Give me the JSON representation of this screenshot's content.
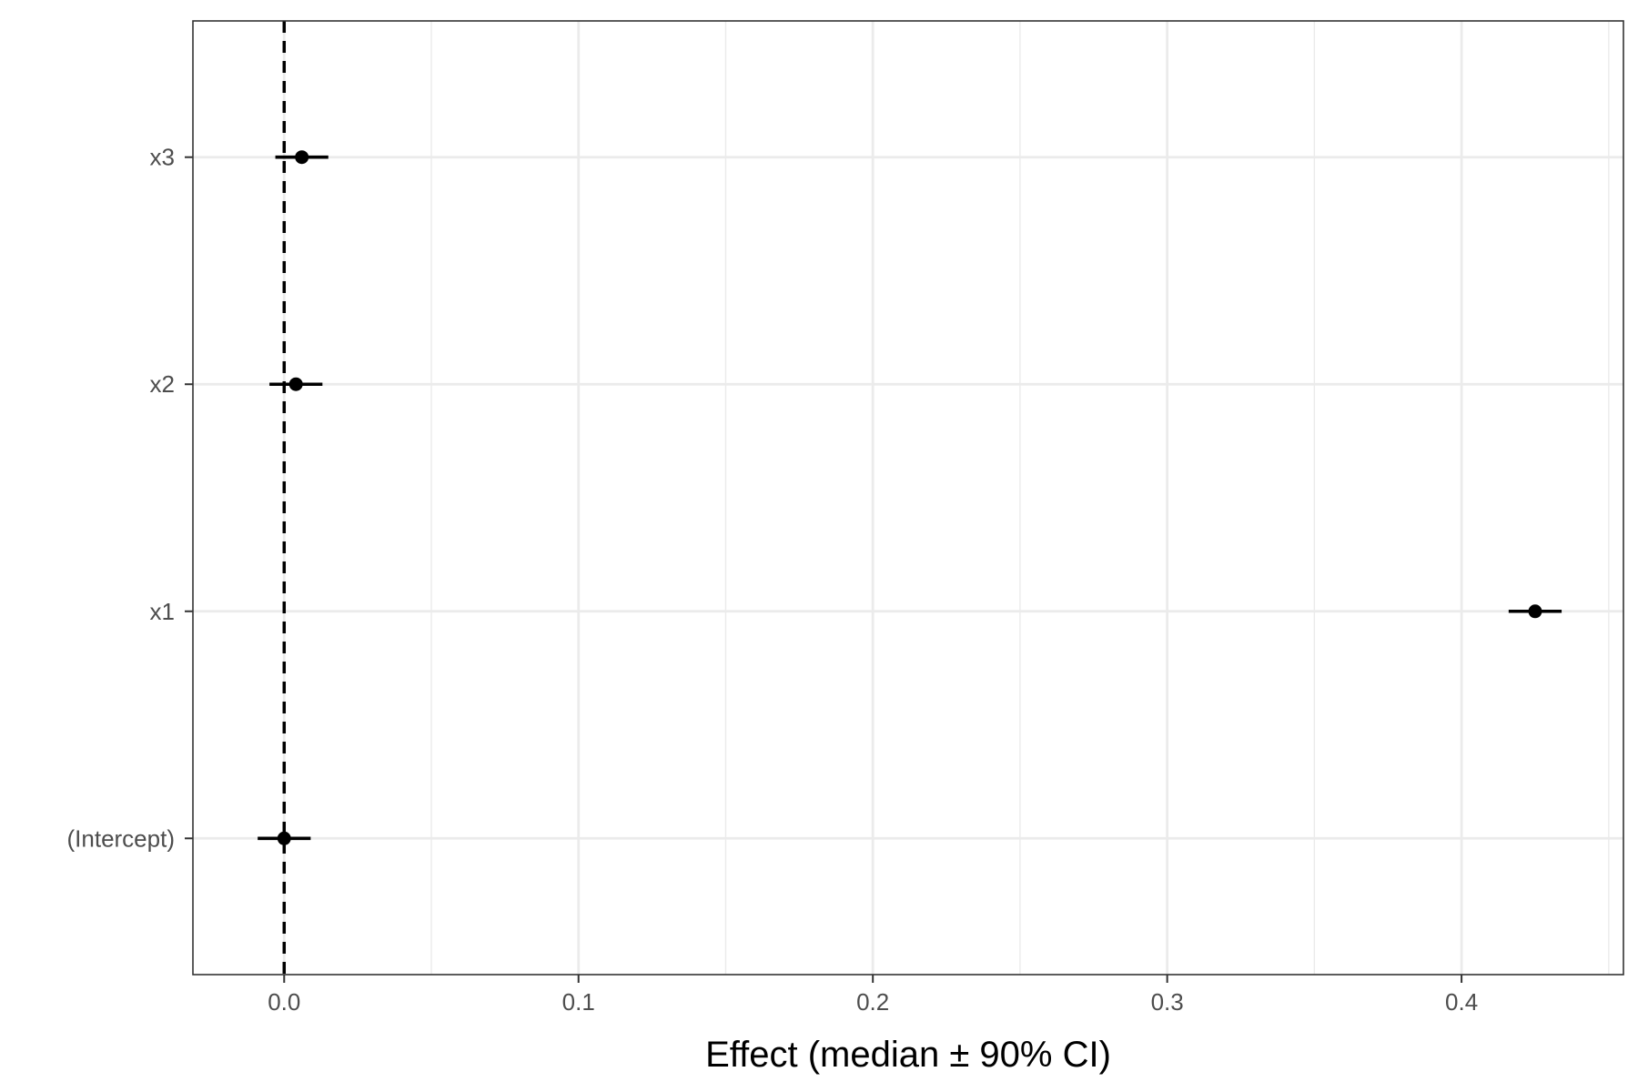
{
  "chart_data": {
    "type": "point-range",
    "title": "",
    "xlabel": "Effect (median ± 90% CI)",
    "ylabel": "",
    "xlim": [
      -0.031,
      0.455
    ],
    "x_ticks": [
      0.0,
      0.1,
      0.2,
      0.3,
      0.4
    ],
    "x_tick_labels": [
      "0.0",
      "0.1",
      "0.2",
      "0.3",
      "0.4"
    ],
    "x_minor_ticks": [
      0.05,
      0.15,
      0.25,
      0.35,
      0.45
    ],
    "categories": [
      "(Intercept)",
      "x1",
      "x2",
      "x3"
    ],
    "medians": [
      0.0,
      0.425,
      0.004,
      0.006
    ],
    "lower": [
      -0.009,
      0.416,
      -0.005,
      -0.003
    ],
    "upper": [
      0.009,
      0.434,
      0.013,
      0.015
    ],
    "reference_line": 0,
    "grid": true,
    "legend": "none",
    "colors": {
      "points": "#000000",
      "grid": "#ebebeb",
      "panel_border": "#333333",
      "tick_text": "#4d4d4d"
    }
  }
}
